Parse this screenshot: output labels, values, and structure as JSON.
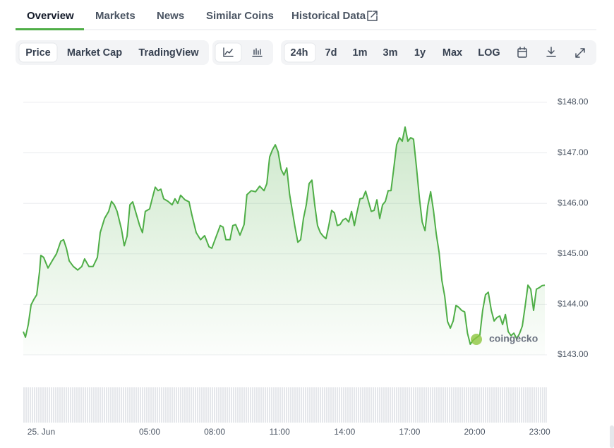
{
  "tabs": [
    "Overview",
    "Markets",
    "News",
    "Similar Coins",
    "Historical Data"
  ],
  "chart_modes": [
    "Price",
    "Market Cap",
    "TradingView"
  ],
  "ranges": [
    "24h",
    "7d",
    "1m",
    "3m",
    "1y",
    "Max",
    "LOG"
  ],
  "chart_data": {
    "type": "line",
    "watermark": "coingecko",
    "color": "#4fae47",
    "grid": true,
    "area": true,
    "x": [
      -0.83,
      -0.73,
      -0.6,
      -0.47,
      -0.34,
      -0.21,
      -0.08,
      -0.02,
      0.11,
      0.31,
      0.5,
      0.7,
      0.9,
      1.03,
      1.16,
      1.29,
      1.48,
      1.68,
      1.87,
      2.0,
      2.2,
      2.39,
      2.59,
      2.72,
      2.92,
      3.11,
      3.24,
      3.37,
      3.5,
      3.7,
      3.83,
      3.96,
      4.09,
      4.22,
      4.35,
      4.54,
      4.67,
      4.8,
      5.0,
      5.13,
      5.26,
      5.39,
      5.52,
      5.65,
      5.85,
      6.04,
      6.17,
      6.3,
      6.43,
      6.63,
      6.82,
      6.95,
      7.15,
      7.35,
      7.54,
      7.74,
      7.87,
      8.06,
      8.26,
      8.39,
      8.52,
      8.71,
      8.84,
      8.97,
      9.17,
      9.36,
      9.49,
      9.69,
      9.89,
      10.08,
      10.28,
      10.41,
      10.54,
      10.67,
      10.8,
      10.93,
      11.07,
      11.2,
      11.33,
      11.46,
      11.59,
      11.71,
      11.84,
      11.97,
      12.1,
      12.23,
      12.36,
      12.49,
      12.62,
      12.75,
      12.88,
      13.01,
      13.14,
      13.27,
      13.4,
      13.53,
      13.66,
      13.79,
      13.92,
      14.05,
      14.19,
      14.32,
      14.45,
      14.58,
      14.71,
      14.84,
      14.97,
      15.1,
      15.23,
      15.36,
      15.49,
      15.62,
      15.75,
      15.88,
      16.01,
      16.14,
      16.27,
      16.4,
      16.53,
      16.66,
      16.79,
      16.92,
      17.05,
      17.18,
      17.31,
      17.45,
      17.58,
      17.71,
      17.84,
      17.97,
      18.1,
      18.23,
      18.36,
      18.49,
      18.62,
      18.75,
      18.88,
      19.01,
      19.14,
      19.27,
      19.4,
      19.54,
      19.67,
      19.8,
      19.93,
      20.11,
      20.24,
      20.37,
      20.5,
      20.63,
      20.77,
      20.9,
      21.03,
      21.16,
      21.29,
      21.42,
      21.55,
      21.68,
      21.81,
      21.94,
      22.07,
      22.2,
      22.33,
      22.46,
      22.59,
      22.72,
      22.85,
      22.98,
      23.11,
      23.24
    ],
    "values": [
      143.46,
      143.35,
      143.6,
      143.99,
      144.1,
      144.19,
      144.65,
      144.97,
      144.93,
      144.72,
      144.86,
      145.0,
      145.25,
      145.28,
      145.11,
      144.86,
      144.75,
      144.68,
      144.75,
      144.9,
      144.75,
      144.75,
      144.93,
      145.42,
      145.7,
      145.84,
      146.04,
      145.97,
      145.84,
      145.49,
      145.16,
      145.35,
      145.97,
      146.03,
      145.84,
      145.56,
      145.42,
      145.84,
      145.89,
      146.11,
      146.32,
      146.25,
      146.28,
      146.09,
      146.04,
      145.97,
      146.09,
      146.0,
      146.16,
      146.07,
      146.03,
      145.77,
      145.42,
      145.28,
      145.36,
      145.14,
      145.11,
      145.33,
      145.56,
      145.53,
      145.28,
      145.28,
      145.56,
      145.58,
      145.37,
      145.58,
      146.17,
      146.25,
      146.23,
      146.34,
      146.25,
      146.39,
      146.92,
      147.06,
      147.16,
      147.02,
      146.67,
      146.56,
      146.7,
      146.18,
      145.84,
      145.53,
      145.23,
      145.28,
      145.7,
      145.97,
      146.39,
      146.46,
      145.97,
      145.56,
      145.42,
      145.35,
      145.3,
      145.56,
      145.86,
      145.81,
      145.56,
      145.58,
      145.67,
      145.7,
      145.63,
      145.84,
      145.56,
      145.84,
      146.09,
      146.1,
      146.24,
      146.04,
      145.84,
      145.86,
      146.07,
      145.7,
      145.97,
      146.04,
      146.25,
      146.25,
      146.7,
      147.16,
      147.3,
      147.23,
      147.51,
      147.23,
      147.3,
      147.27,
      146.74,
      146.11,
      145.63,
      145.46,
      145.95,
      146.23,
      145.86,
      145.39,
      145.03,
      144.47,
      144.16,
      143.66,
      143.53,
      143.67,
      143.98,
      143.94,
      143.88,
      143.85,
      143.43,
      143.21,
      143.29,
      143.35,
      143.39,
      143.88,
      144.19,
      144.24,
      143.88,
      143.67,
      143.74,
      143.77,
      143.6,
      143.8,
      143.46,
      143.38,
      143.43,
      143.32,
      143.42,
      143.57,
      143.96,
      144.38,
      144.3,
      143.88,
      144.3,
      144.33,
      144.37,
      144.38
    ],
    "xlim": [
      -0.83,
      23.24
    ],
    "xticks": [
      {
        "value": 0,
        "label": "25. Jun"
      },
      {
        "value": 5,
        "label": "05:00"
      },
      {
        "value": 8,
        "label": "08:00"
      },
      {
        "value": 11,
        "label": "11:00"
      },
      {
        "value": 14,
        "label": "14:00"
      },
      {
        "value": 17,
        "label": "17:00"
      },
      {
        "value": 20,
        "label": "20:00"
      },
      {
        "value": 23,
        "label": "23:00"
      }
    ],
    "ylim": [
      143,
      148
    ],
    "yticks": [
      {
        "value": 143,
        "label": "$143.00"
      },
      {
        "value": 144,
        "label": "$144.00"
      },
      {
        "value": 145,
        "label": "$145.00"
      },
      {
        "value": 146,
        "label": "$146.00"
      },
      {
        "value": 147,
        "label": "$147.00"
      },
      {
        "value": 148,
        "label": "$148.00"
      }
    ]
  }
}
